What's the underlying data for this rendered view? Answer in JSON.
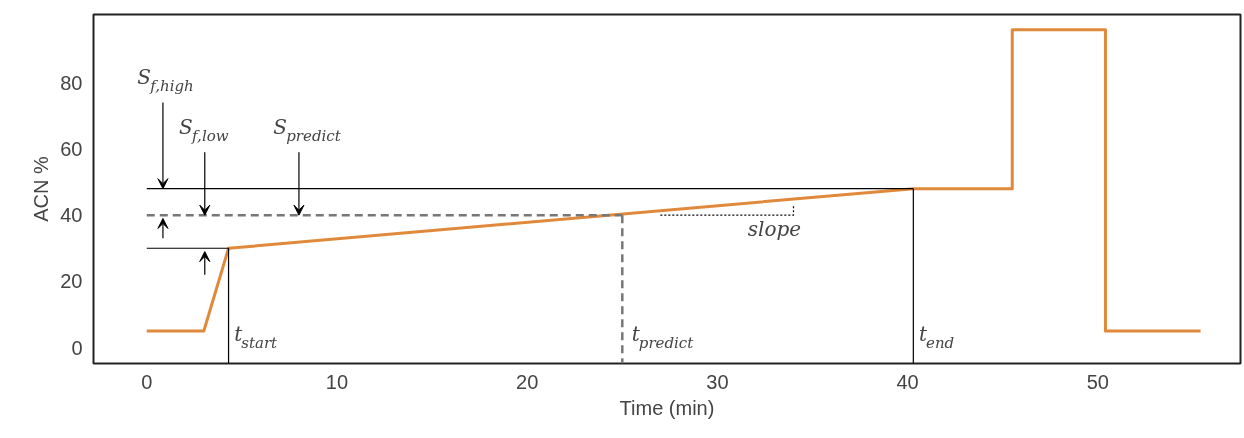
{
  "chart_data": {
    "type": "line",
    "xlabel": "Time (min)",
    "ylabel": "ACN %",
    "xlim": [
      -2.8,
      57.5
    ],
    "ylim": [
      -4.8,
      100.6
    ],
    "xticks": [
      0,
      10,
      20,
      30,
      40,
      50
    ],
    "yticks": [
      0,
      20,
      40,
      60,
      80
    ],
    "grid": false,
    "series": [
      {
        "color": "#e0893a",
        "line_style": "solid",
        "x": [
          0,
          3,
          4.3,
          40.3,
          45.5,
          45.5,
          50.4,
          50.4,
          55.4
        ],
        "values": [
          5,
          5,
          30,
          48,
          48,
          96,
          96,
          5,
          5
        ]
      },
      {
        "color": "#000000",
        "line_style": "solid",
        "x": [
          0,
          40.3
        ],
        "values": [
          48,
          48
        ]
      },
      {
        "color": "#777777",
        "line_style": "dashed",
        "x": [
          0,
          25
        ],
        "values": [
          40,
          40
        ]
      },
      {
        "color": "#000000",
        "line_style": "solid",
        "x": [
          0,
          4.3
        ],
        "values": [
          30,
          30
        ]
      },
      {
        "color": "#000000",
        "line_style": "solid",
        "x": [
          4.3,
          4.3
        ],
        "values": [
          30,
          -4.8
        ]
      },
      {
        "color": "#000000",
        "line_style": "solid",
        "x": [
          40.3,
          40.3
        ],
        "values": [
          48,
          -4.8
        ]
      },
      {
        "color": "#777777",
        "line_style": "dashed",
        "x": [
          25,
          25
        ],
        "values": [
          40,
          -4.8
        ]
      },
      {
        "color": "#000000",
        "line_style": "dotted",
        "x": [
          27,
          34,
          34
        ],
        "values": [
          40,
          40,
          43
        ]
      }
    ],
    "annotations": [
      {
        "text": "S$_{f,high}$",
        "x": 0.85,
        "y": 48
      },
      {
        "text": "S$_{f,low}$",
        "x": 3.05,
        "y": 40
      },
      {
        "text": "S$_{predict}$",
        "x": 8,
        "y": 40
      },
      "t$_{start}$",
      "t$_{predict}$",
      "t$_{end}$",
      "slope"
    ]
  }
}
